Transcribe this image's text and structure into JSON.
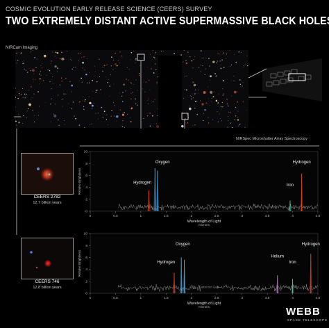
{
  "header": {
    "survey": "COSMIC EVOLUTION EARLY RELEASE SCIENCE (CEERS) SURVEY",
    "title": "TWO EXTREMELY DISTANT ACTIVE SUPERMASSIVE BLACK HOLES"
  },
  "imaging": {
    "label": "NIRCam Imaging"
  },
  "spectroscopy": {
    "label": "NIRSpec Microshutter Array Spectroscopy"
  },
  "objects": [
    {
      "name": "CEERS 2782",
      "age": "12.7 billion years"
    },
    {
      "name": "CEERS 746",
      "age": "12.8 billion years"
    }
  ],
  "logo": {
    "name": "WEBB",
    "sub": "SPACE TELESCOPE"
  },
  "colors": {
    "background": "#000000",
    "noise": "#9a9a9a",
    "hydrogen": "#e04a2a",
    "oxygen": "#4aa8e8",
    "iron": "#3dc8a6",
    "helium": "#c46ad4"
  },
  "chart_data": [
    {
      "type": "line",
      "title": "",
      "xlabel": "Wavelength of Light",
      "xunit": "microns",
      "ylabel": "Relative Brightness",
      "xlim": [
        0,
        4.5
      ],
      "ylim": [
        0,
        10
      ],
      "x_ticks": [
        "0",
        "0.5",
        "1",
        "1.5",
        "2",
        "2.5",
        "3",
        "3.5",
        "4",
        "4.5"
      ],
      "y_ticks": [
        "0",
        "2",
        "4",
        "6",
        "8",
        "10"
      ],
      "grid": false,
      "noise_level": 0.7,
      "lines": [
        {
          "label": "Hydrogen",
          "x": 1.16,
          "height": 3.5,
          "color": "#e04a2a"
        },
        {
          "label": "Oxygen",
          "x": 1.28,
          "height": 7.2,
          "color": "#4aa8e8"
        },
        {
          "label": "Oxygen",
          "x": 1.33,
          "height": 6.8,
          "color": "#4aa8e8"
        },
        {
          "label": "Iron",
          "x": 3.95,
          "height": 1.8,
          "color": "#3dc8a6"
        },
        {
          "label": "Hydrogen",
          "x": 4.18,
          "height": 6.3,
          "color": "#e04a2a"
        }
      ],
      "labels": [
        {
          "text": "Hydrogen",
          "x": 1.03,
          "y": 4.6
        },
        {
          "text": "Oxygen",
          "x": 1.43,
          "y": 8.0
        },
        {
          "text": "Iron",
          "x": 3.95,
          "y": 4.2
        },
        {
          "text": "Hydrogen",
          "x": 4.18,
          "y": 8.0
        }
      ]
    },
    {
      "type": "line",
      "title": "",
      "xlabel": "Wavelength of Light",
      "xunit": "microns",
      "ylabel": "Relative Brightness",
      "xlim": [
        0,
        4.5
      ],
      "ylim": [
        0,
        10
      ],
      "x_ticks": [
        "0",
        "0.5",
        "1",
        "1.5",
        "2",
        "2.5",
        "3",
        "3.5",
        "4",
        "4.5"
      ],
      "y_ticks": [
        "0",
        "2",
        "4",
        "6",
        "8",
        "10"
      ],
      "grid": false,
      "noise_level": 0.9,
      "gap": {
        "label": "Detector Gap",
        "x": [
          2.2,
          2.5
        ]
      },
      "lines": [
        {
          "label": "Hydrogen",
          "x": 1.66,
          "height": 3.4,
          "color": "#e04a2a"
        },
        {
          "label": "Oxygen",
          "x": 1.8,
          "height": 6.0,
          "color": "#4aa8e8"
        },
        {
          "label": "Oxygen",
          "x": 1.86,
          "height": 5.6,
          "color": "#4aa8e8"
        },
        {
          "label": "Helium",
          "x": 3.7,
          "height": 3.0,
          "color": "#c46ad4"
        },
        {
          "label": "Iron",
          "x": 4.0,
          "height": 2.4,
          "color": "#3dc8a6"
        },
        {
          "label": "Hydrogen",
          "x": 4.36,
          "height": 6.6,
          "color": "#e04a2a"
        }
      ],
      "labels": [
        {
          "text": "Oxygen",
          "x": 1.83,
          "y": 8.0
        },
        {
          "text": "Hydrogen",
          "x": 1.5,
          "y": 5.0
        },
        {
          "text": "Helium",
          "x": 3.7,
          "y": 6.0
        },
        {
          "text": "Iron",
          "x": 4.0,
          "y": 5.0
        },
        {
          "text": "Hydrogen",
          "x": 4.36,
          "y": 8.0
        }
      ]
    }
  ]
}
